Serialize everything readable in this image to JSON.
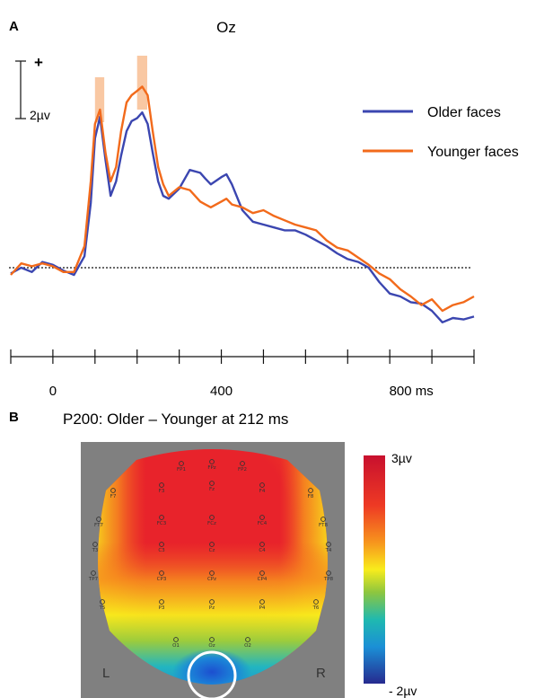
{
  "panel_a": {
    "letter": "A",
    "channel": "Oz",
    "scale_sign": "+",
    "scale_label": "2µv",
    "legend": [
      {
        "label": "Older faces",
        "color": "#3b46b0"
      },
      {
        "label": "Younger faces",
        "color": "#f26a1b"
      }
    ]
  },
  "panel_b": {
    "letter": "B",
    "title": "P200: Older – Younger at 212 ms",
    "colorbar_max_label": "3µv",
    "colorbar_min_label": "- 2µv",
    "left_label": "L",
    "right_label": "R",
    "electrodes": [
      "FP1",
      "FPz",
      "FP2",
      "F7",
      "F3",
      "Fz",
      "F4",
      "F8",
      "FT7",
      "FC3",
      "FCz",
      "FC4",
      "FT8",
      "T3",
      "C3",
      "Cz",
      "C4",
      "T4",
      "TP7",
      "CP3",
      "CPz",
      "CP4",
      "TP8",
      "T5",
      "P3",
      "Pz",
      "P4",
      "T6",
      "O1",
      "Oz",
      "O2"
    ]
  },
  "chart_data": [
    {
      "type": "line",
      "title": "Oz",
      "xlabel": "",
      "ylabel": "",
      "x_unit": "ms",
      "xlim": [
        -100,
        1000
      ],
      "x_ticks": [
        0,
        400,
        800
      ],
      "x_tick_labels": [
        "0",
        "400",
        "800 ms"
      ],
      "scale_bar_uv": 2,
      "baseline": 0,
      "highlight_windows_ms": [
        [
          100,
          122
        ],
        [
          200,
          224
        ]
      ],
      "x": [
        -100,
        -75,
        -50,
        -25,
        0,
        25,
        50,
        75,
        90,
        100,
        112,
        125,
        137,
        150,
        162,
        175,
        187,
        200,
        212,
        225,
        237,
        250,
        262,
        275,
        300,
        325,
        350,
        362,
        375,
        400,
        412,
        425,
        450,
        475,
        500,
        525,
        550,
        575,
        600,
        625,
        650,
        675,
        700,
        725,
        750,
        775,
        800,
        825,
        850,
        875,
        900,
        925,
        950,
        975,
        1000
      ],
      "series": [
        {
          "name": "Older faces",
          "color": "#3b46b0",
          "values": [
            -0.4,
            0.0,
            -0.3,
            0.4,
            0.2,
            -0.2,
            -0.5,
            0.8,
            4.5,
            9.0,
            10.5,
            7.5,
            5.0,
            6.0,
            7.8,
            9.5,
            10.2,
            10.4,
            10.8,
            10.0,
            8.0,
            6.0,
            5.0,
            4.8,
            5.5,
            6.8,
            6.6,
            6.2,
            5.8,
            6.3,
            6.5,
            5.8,
            4.0,
            3.2,
            3.0,
            2.8,
            2.6,
            2.6,
            2.3,
            1.9,
            1.5,
            1.0,
            0.6,
            0.4,
            0.0,
            -1.0,
            -1.8,
            -2.0,
            -2.4,
            -2.5,
            -3.0,
            -3.8,
            -3.5,
            -3.6,
            -3.4
          ]
        },
        {
          "name": "Younger faces",
          "color": "#f26a1b",
          "values": [
            -0.5,
            0.3,
            0.1,
            0.3,
            0.1,
            -0.3,
            -0.3,
            1.5,
            6.0,
            10.0,
            11.0,
            8.0,
            6.0,
            7.0,
            9.5,
            11.5,
            12.0,
            12.3,
            12.6,
            12.0,
            9.5,
            7.0,
            5.8,
            5.0,
            5.6,
            5.4,
            4.6,
            4.4,
            4.2,
            4.6,
            4.8,
            4.4,
            4.2,
            3.8,
            4.0,
            3.6,
            3.3,
            3.0,
            2.8,
            2.6,
            1.9,
            1.4,
            1.2,
            0.7,
            0.2,
            -0.4,
            -0.8,
            -1.5,
            -2.0,
            -2.6,
            -2.2,
            -3.0,
            -2.6,
            -2.4,
            -2.0
          ]
        }
      ]
    },
    {
      "type": "heatmap",
      "title": "P200: Older – Younger at 212 ms",
      "colorbar_range_uv": [
        -2,
        3
      ],
      "colorbar_labels": [
        "3µv",
        "- 2µv"
      ],
      "highlighted_electrode": "Oz"
    }
  ]
}
